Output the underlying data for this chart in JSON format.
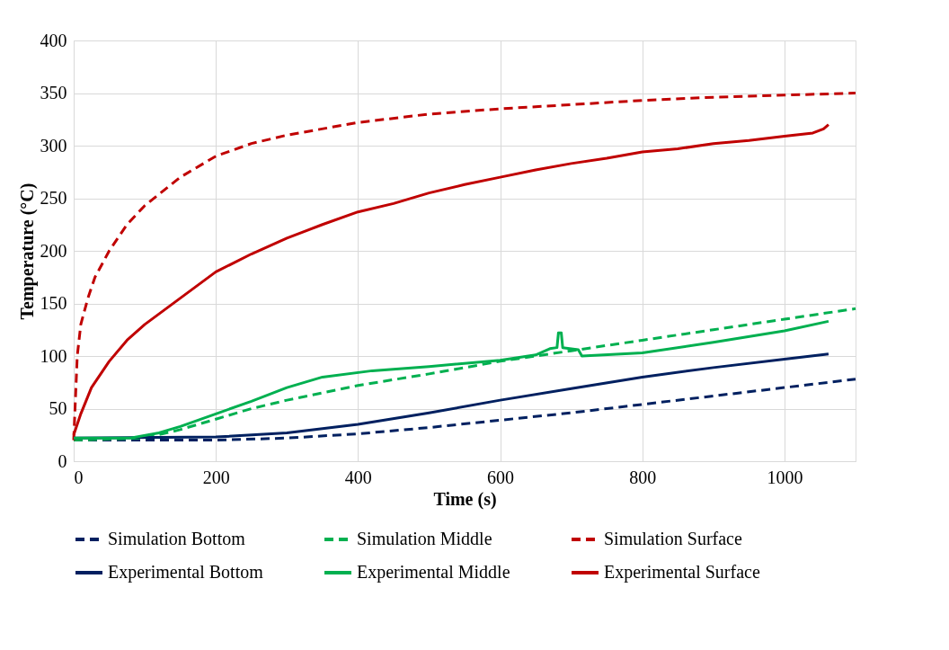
{
  "chart_data": {
    "type": "line",
    "xlabel": "Time (s)",
    "ylabel": "Temperature (°C)",
    "xlim": [
      0,
      1100
    ],
    "xticks": [
      0,
      200,
      400,
      600,
      800,
      1000
    ],
    "ylim": [
      0,
      400
    ],
    "yticks": [
      0,
      50,
      100,
      150,
      200,
      250,
      300,
      350,
      400
    ],
    "grid": true,
    "legend": "bottom",
    "marker": "none",
    "series": [
      {
        "name": "Simulation Bottom",
        "color": "#002060",
        "line_style": "dashed",
        "x": [
          0,
          200,
          300,
          400,
          500,
          600,
          700,
          800,
          900,
          1000,
          1100
        ],
        "values": [
          20,
          20,
          22,
          26,
          32,
          39,
          46,
          54,
          62,
          70,
          78
        ]
      },
      {
        "name": "Simulation Middle",
        "color": "#00b050",
        "line_style": "dashed",
        "x": [
          0,
          100,
          150,
          200,
          250,
          300,
          400,
          500,
          600,
          700,
          800,
          900,
          1000,
          1100
        ],
        "values": [
          20,
          22,
          30,
          40,
          50,
          58,
          72,
          83,
          95,
          105,
          115,
          125,
          135,
          145
        ]
      },
      {
        "name": "Simulation Surface",
        "color": "#c00000",
        "line_style": "dashed",
        "x": [
          0,
          5,
          10,
          20,
          30,
          50,
          75,
          100,
          150,
          200,
          250,
          300,
          400,
          500,
          600,
          700,
          800,
          900,
          1000,
          1100
        ],
        "values": [
          20,
          100,
          130,
          155,
          175,
          200,
          225,
          243,
          270,
          290,
          302,
          310,
          322,
          330,
          335,
          339,
          343,
          346,
          348,
          350
        ]
      },
      {
        "name": "Experimental Bottom",
        "color": "#002060",
        "line_style": "solid",
        "x": [
          0,
          200,
          300,
          400,
          500,
          600,
          700,
          800,
          900,
          1000,
          1062
        ],
        "values": [
          22,
          23,
          27,
          35,
          46,
          58,
          69,
          80,
          89,
          97,
          102
        ]
      },
      {
        "name": "Experimental Middle",
        "color": "#00b050",
        "line_style": "solid",
        "x": [
          0,
          80,
          120,
          150,
          200,
          250,
          300,
          350,
          420,
          500,
          600,
          650,
          670,
          680,
          682,
          686,
          688,
          710,
          715,
          800,
          900,
          1000,
          1062
        ],
        "values": [
          22,
          22,
          27,
          33,
          45,
          57,
          70,
          80,
          86,
          90,
          96,
          101,
          107,
          108,
          122,
          122,
          108,
          106,
          100,
          103,
          113,
          124,
          133
        ]
      },
      {
        "name": "Experimental Surface",
        "color": "#c00000",
        "line_style": "solid",
        "x": [
          0,
          10,
          25,
          50,
          75,
          100,
          150,
          200,
          250,
          300,
          350,
          400,
          450,
          500,
          550,
          600,
          650,
          700,
          750,
          800,
          850,
          900,
          950,
          1000,
          1040,
          1055,
          1062
        ],
        "values": [
          25,
          45,
          70,
          95,
          115,
          130,
          155,
          180,
          197,
          212,
          225,
          237,
          245,
          255,
          263,
          270,
          277,
          283,
          288,
          294,
          297,
          302,
          305,
          309,
          312,
          316,
          320
        ]
      }
    ]
  }
}
